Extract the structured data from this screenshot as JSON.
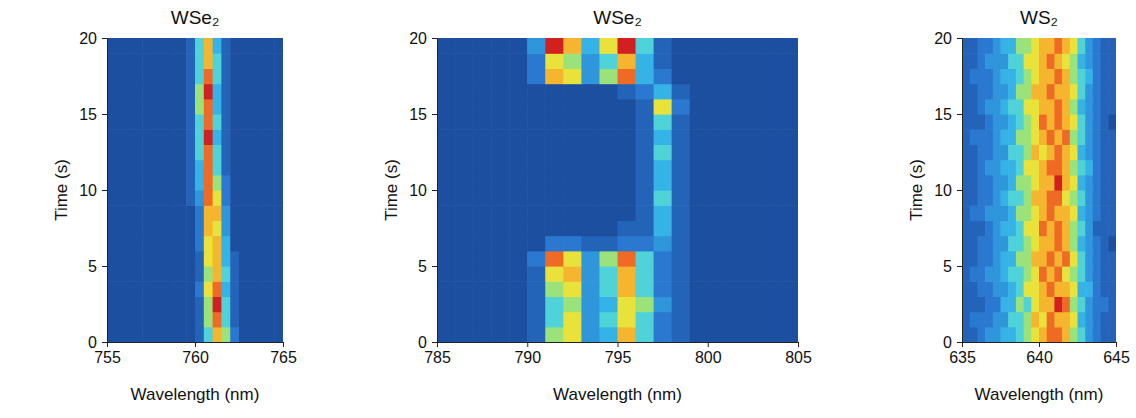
{
  "chart_data": [
    {
      "type": "heatmap",
      "title": "WSe₂",
      "x_label": "Wavelength (nm)",
      "y_label": "Time (s)",
      "xlim": [
        755,
        765
      ],
      "xticks": [
        755,
        760,
        765
      ],
      "ylim": [
        0,
        20
      ],
      "yticks": [
        0,
        5,
        10,
        15,
        20
      ],
      "zlim": [
        0,
        10
      ],
      "x_bins": [
        755,
        755.5,
        756,
        756.5,
        757,
        757.5,
        758,
        758.5,
        759,
        759.5,
        760,
        760.5,
        761,
        761.5,
        762,
        762.5,
        763,
        763.5,
        764,
        764.5,
        765
      ],
      "y_bins": [
        0,
        1,
        2,
        3,
        4,
        5,
        6,
        7,
        8,
        9,
        10,
        11,
        12,
        13,
        14,
        15,
        16,
        17,
        18,
        19,
        20
      ],
      "cells": [
        [
          0,
          0,
          0,
          0,
          0,
          0,
          0,
          0,
          0,
          0,
          1,
          5,
          8,
          6,
          2,
          0,
          0,
          0,
          0,
          0
        ],
        [
          0,
          0,
          0,
          0,
          0,
          0,
          0,
          0,
          0,
          0,
          1,
          6,
          9,
          5,
          1,
          0,
          0,
          0,
          0,
          0
        ],
        [
          0,
          0,
          0,
          0,
          0,
          0,
          0,
          0,
          0,
          0,
          1,
          6,
          10,
          5,
          1,
          0,
          0,
          0,
          0,
          0
        ],
        [
          0,
          0,
          0,
          0,
          0,
          0,
          0,
          0,
          0,
          0,
          2,
          7,
          9,
          4,
          1,
          0,
          0,
          0,
          0,
          0
        ],
        [
          0,
          0,
          0,
          0,
          0,
          0,
          0,
          0,
          0,
          0,
          1,
          6,
          8,
          5,
          1,
          0,
          0,
          0,
          0,
          0
        ],
        [
          0,
          0,
          0,
          0,
          0,
          0,
          0,
          0,
          0,
          0,
          1,
          7,
          8,
          4,
          1,
          0,
          0,
          0,
          0,
          0
        ],
        [
          0,
          0,
          0,
          0,
          0,
          0,
          0,
          0,
          0,
          0,
          2,
          7,
          8,
          4,
          0,
          0,
          0,
          0,
          0,
          0
        ],
        [
          0,
          0,
          0,
          0,
          0,
          0,
          0,
          0,
          0,
          0,
          2,
          8,
          7,
          3,
          0,
          0,
          0,
          0,
          0,
          0
        ],
        [
          0,
          0,
          0,
          0,
          0,
          0,
          0,
          0,
          0,
          0,
          2,
          8,
          8,
          3,
          0,
          0,
          0,
          0,
          0,
          0
        ],
        [
          0,
          0,
          0,
          0,
          0,
          0,
          0,
          0,
          0,
          1,
          3,
          9,
          7,
          2,
          0,
          0,
          0,
          0,
          0,
          0
        ],
        [
          0,
          0,
          0,
          0,
          0,
          0,
          0,
          0,
          0,
          1,
          4,
          9,
          6,
          2,
          0,
          0,
          0,
          0,
          0,
          0
        ],
        [
          0,
          0,
          0,
          0,
          0,
          0,
          0,
          0,
          0,
          1,
          4,
          9,
          5,
          1,
          0,
          0,
          0,
          0,
          0,
          0
        ],
        [
          0,
          0,
          0,
          0,
          0,
          0,
          0,
          0,
          0,
          1,
          5,
          9,
          5,
          1,
          0,
          0,
          0,
          0,
          0,
          0
        ],
        [
          0,
          0,
          0,
          0,
          0,
          0,
          0,
          0,
          0,
          1,
          5,
          10,
          4,
          1,
          0,
          0,
          0,
          0,
          0,
          0
        ],
        [
          0,
          0,
          0,
          0,
          0,
          0,
          0,
          0,
          0,
          1,
          5,
          9,
          5,
          1,
          0,
          0,
          0,
          0,
          0,
          0
        ],
        [
          0,
          0,
          0,
          0,
          0,
          0,
          0,
          0,
          0,
          1,
          6,
          9,
          4,
          1,
          0,
          0,
          0,
          0,
          0,
          0
        ],
        [
          0,
          0,
          0,
          0,
          0,
          0,
          0,
          0,
          0,
          1,
          6,
          10,
          4,
          1,
          0,
          0,
          0,
          0,
          0,
          0
        ],
        [
          0,
          0,
          0,
          0,
          0,
          0,
          0,
          0,
          0,
          1,
          5,
          9,
          5,
          1,
          0,
          0,
          0,
          0,
          0,
          0
        ],
        [
          0,
          0,
          0,
          0,
          0,
          0,
          0,
          0,
          0,
          1,
          5,
          8,
          5,
          1,
          0,
          0,
          0,
          0,
          0,
          0
        ],
        [
          0,
          0,
          0,
          0,
          0,
          0,
          0,
          0,
          0,
          1,
          5,
          8,
          4,
          1,
          0,
          0,
          0,
          0,
          0,
          0
        ]
      ]
    },
    {
      "type": "heatmap",
      "title": "WSe₂",
      "x_label": "Wavelength (nm)",
      "y_label": "Time (s)",
      "xlim": [
        785,
        805
      ],
      "xticks": [
        785,
        790,
        795,
        800,
        805
      ],
      "ylim": [
        0,
        20
      ],
      "yticks": [
        0,
        5,
        10,
        15,
        20
      ],
      "zlim": [
        0,
        10
      ],
      "x_bins": [
        785,
        786,
        787,
        788,
        789,
        790,
        791,
        792,
        793,
        794,
        795,
        796,
        797,
        798,
        799,
        800,
        801,
        802,
        803,
        804,
        805
      ],
      "y_bins": [
        0,
        1,
        2,
        3,
        4,
        5,
        6,
        7,
        8,
        9,
        10,
        11,
        12,
        13,
        14,
        15,
        16,
        17,
        18,
        19,
        20
      ],
      "cells": [
        [
          0,
          0,
          0,
          0,
          0,
          1,
          6,
          7,
          3,
          4,
          8,
          5,
          2,
          1,
          0,
          0,
          0,
          0,
          0,
          0
        ],
        [
          0,
          0,
          0,
          0,
          0,
          1,
          5,
          7,
          3,
          5,
          7,
          5,
          2,
          1,
          0,
          0,
          0,
          0,
          0,
          0
        ],
        [
          0,
          0,
          0,
          0,
          0,
          1,
          5,
          6,
          3,
          4,
          7,
          6,
          3,
          1,
          0,
          0,
          0,
          0,
          0,
          0
        ],
        [
          0,
          0,
          0,
          0,
          0,
          1,
          6,
          7,
          3,
          5,
          8,
          5,
          2,
          1,
          0,
          0,
          0,
          0,
          0,
          0
        ],
        [
          0,
          0,
          0,
          0,
          0,
          1,
          7,
          8,
          3,
          5,
          8,
          5,
          2,
          1,
          0,
          0,
          0,
          0,
          0,
          0
        ],
        [
          0,
          0,
          0,
          0,
          0,
          2,
          9,
          7,
          3,
          6,
          9,
          5,
          2,
          1,
          0,
          0,
          0,
          0,
          0,
          0
        ],
        [
          0,
          0,
          0,
          0,
          0,
          0,
          2,
          2,
          1,
          1,
          2,
          2,
          3,
          1,
          0,
          0,
          0,
          0,
          0,
          0
        ],
        [
          0,
          0,
          0,
          0,
          0,
          0,
          0,
          0,
          0,
          0,
          1,
          1,
          4,
          1,
          0,
          0,
          0,
          0,
          0,
          0
        ],
        [
          0,
          0,
          0,
          0,
          0,
          0,
          0,
          0,
          0,
          0,
          0,
          1,
          4,
          1,
          0,
          0,
          0,
          0,
          0,
          0
        ],
        [
          0,
          0,
          0,
          0,
          0,
          0,
          0,
          0,
          0,
          0,
          0,
          1,
          5,
          1,
          0,
          0,
          0,
          0,
          0,
          0
        ],
        [
          0,
          0,
          0,
          0,
          0,
          0,
          0,
          0,
          0,
          0,
          0,
          1,
          4,
          1,
          0,
          0,
          0,
          0,
          0,
          0
        ],
        [
          0,
          0,
          0,
          0,
          0,
          0,
          0,
          0,
          0,
          0,
          0,
          1,
          4,
          1,
          0,
          0,
          0,
          0,
          0,
          0
        ],
        [
          0,
          0,
          0,
          0,
          0,
          0,
          0,
          0,
          0,
          0,
          0,
          1,
          5,
          1,
          0,
          0,
          0,
          0,
          0,
          0
        ],
        [
          0,
          0,
          0,
          0,
          0,
          0,
          0,
          0,
          0,
          0,
          0,
          1,
          4,
          1,
          0,
          0,
          0,
          0,
          0,
          0
        ],
        [
          0,
          0,
          0,
          0,
          0,
          0,
          0,
          0,
          0,
          0,
          0,
          1,
          5,
          1,
          0,
          0,
          0,
          0,
          0,
          0
        ],
        [
          0,
          0,
          0,
          0,
          0,
          0,
          0,
          0,
          0,
          0,
          0,
          1,
          7,
          2,
          0,
          0,
          0,
          0,
          0,
          0
        ],
        [
          0,
          0,
          0,
          0,
          0,
          0,
          0,
          0,
          0,
          0,
          1,
          2,
          4,
          1,
          0,
          0,
          0,
          0,
          0,
          0
        ],
        [
          0,
          0,
          0,
          0,
          0,
          2,
          8,
          7,
          3,
          6,
          9,
          4,
          2,
          0,
          0,
          0,
          0,
          0,
          0,
          0
        ],
        [
          0,
          0,
          0,
          0,
          0,
          2,
          7,
          6,
          3,
          5,
          8,
          4,
          1,
          0,
          0,
          0,
          0,
          0,
          0,
          0
        ],
        [
          0,
          0,
          0,
          0,
          0,
          3,
          10,
          8,
          4,
          7,
          10,
          5,
          1,
          0,
          0,
          0,
          0,
          0,
          0,
          0
        ]
      ]
    },
    {
      "type": "heatmap",
      "title": "WS₂",
      "x_label": "Wavelength (nm)",
      "y_label": "Time (s)",
      "xlim": [
        635,
        645
      ],
      "xticks": [
        635,
        640,
        645
      ],
      "ylim": [
        0,
        20
      ],
      "yticks": [
        0,
        5,
        10,
        15,
        20
      ],
      "zlim": [
        0,
        10
      ],
      "x_bins": [
        635,
        635.5,
        636,
        636.5,
        637,
        637.5,
        638,
        638.5,
        639,
        639.5,
        640,
        640.5,
        641,
        641.5,
        642,
        642.5,
        643,
        643.5,
        644,
        644.5,
        645
      ],
      "y_bins": [
        0,
        1,
        2,
        3,
        4,
        5,
        6,
        7,
        8,
        9,
        10,
        11,
        12,
        13,
        14,
        15,
        16,
        17,
        18,
        19,
        20
      ],
      "cells": [
        [
          1,
          1,
          2,
          3,
          3,
          4,
          4,
          5,
          6,
          7,
          8,
          9,
          9,
          8,
          6,
          5,
          3,
          2,
          1,
          1
        ],
        [
          1,
          2,
          2,
          2,
          3,
          3,
          5,
          5,
          6,
          8,
          7,
          9,
          8,
          8,
          7,
          4,
          3,
          2,
          1,
          1
        ],
        [
          1,
          1,
          1,
          2,
          2,
          4,
          4,
          6,
          5,
          7,
          8,
          8,
          10,
          9,
          6,
          5,
          3,
          2,
          2,
          1
        ],
        [
          1,
          1,
          2,
          2,
          3,
          3,
          4,
          5,
          7,
          7,
          8,
          9,
          8,
          8,
          7,
          4,
          4,
          2,
          1,
          1
        ],
        [
          1,
          2,
          2,
          3,
          3,
          4,
          5,
          5,
          6,
          7,
          9,
          8,
          9,
          7,
          6,
          5,
          3,
          2,
          1,
          1
        ],
        [
          1,
          1,
          2,
          2,
          3,
          4,
          4,
          6,
          6,
          8,
          8,
          9,
          8,
          9,
          7,
          5,
          3,
          2,
          1,
          1
        ],
        [
          1,
          1,
          2,
          2,
          3,
          3,
          5,
          5,
          6,
          7,
          8,
          8,
          9,
          8,
          6,
          4,
          3,
          2,
          1,
          0
        ],
        [
          1,
          1,
          1,
          2,
          3,
          4,
          4,
          5,
          7,
          7,
          9,
          8,
          9,
          8,
          6,
          5,
          3,
          1,
          1,
          1
        ],
        [
          1,
          2,
          2,
          3,
          3,
          3,
          4,
          6,
          6,
          7,
          8,
          9,
          8,
          8,
          7,
          4,
          3,
          2,
          1,
          1
        ],
        [
          1,
          1,
          2,
          2,
          3,
          4,
          5,
          5,
          6,
          8,
          8,
          9,
          9,
          7,
          6,
          5,
          3,
          2,
          1,
          1
        ],
        [
          1,
          1,
          2,
          2,
          3,
          3,
          4,
          6,
          6,
          7,
          8,
          8,
          10,
          8,
          7,
          4,
          3,
          2,
          1,
          1
        ],
        [
          1,
          1,
          2,
          3,
          3,
          4,
          4,
          5,
          7,
          7,
          8,
          9,
          9,
          8,
          6,
          5,
          4,
          2,
          1,
          1
        ],
        [
          1,
          1,
          2,
          2,
          3,
          3,
          5,
          5,
          6,
          8,
          7,
          8,
          9,
          8,
          7,
          4,
          3,
          2,
          1,
          1
        ],
        [
          1,
          2,
          2,
          2,
          3,
          4,
          4,
          6,
          6,
          7,
          8,
          9,
          8,
          9,
          6,
          5,
          3,
          2,
          1,
          1
        ],
        [
          1,
          1,
          1,
          2,
          3,
          3,
          4,
          5,
          6,
          7,
          9,
          8,
          9,
          8,
          7,
          5,
          3,
          2,
          1,
          0
        ],
        [
          1,
          1,
          2,
          3,
          3,
          4,
          5,
          5,
          7,
          7,
          8,
          8,
          9,
          8,
          6,
          4,
          3,
          2,
          1,
          1
        ],
        [
          1,
          1,
          2,
          2,
          3,
          3,
          4,
          6,
          6,
          8,
          8,
          9,
          8,
          8,
          7,
          5,
          3,
          2,
          1,
          1
        ],
        [
          1,
          2,
          2,
          2,
          3,
          4,
          4,
          5,
          6,
          7,
          8,
          8,
          9,
          8,
          6,
          5,
          4,
          2,
          1,
          1
        ],
        [
          1,
          1,
          2,
          3,
          3,
          3,
          5,
          5,
          7,
          7,
          8,
          9,
          8,
          7,
          6,
          4,
          3,
          2,
          1,
          1
        ],
        [
          1,
          1,
          2,
          2,
          3,
          4,
          4,
          6,
          6,
          7,
          8,
          8,
          9,
          8,
          7,
          5,
          3,
          2,
          1,
          1
        ]
      ]
    }
  ]
}
